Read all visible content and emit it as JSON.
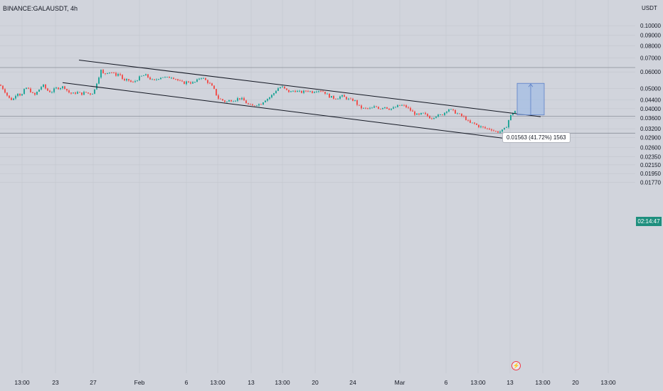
{
  "header": {
    "symbol": "BINANCE:GALAUSDT, 4h",
    "unit": "USDT"
  },
  "colors": {
    "background": "#d1d4dc",
    "up": "#26a69a",
    "down": "#ef5350",
    "line": "#131722",
    "measure_fill": "#a3bde4",
    "measure_border": "#5b7fc7",
    "price_tag": "#1e8f7e"
  },
  "measure": {
    "label": "0.01563 (41.72%) 1563"
  },
  "current_price_tag": "02:14:47",
  "icons": {
    "flash": "flash-icon"
  },
  "chart_data": {
    "type": "candlestick",
    "title": "BINANCE:GALAUSDT, 4h",
    "ylabel": "USDT",
    "ylim": [
      0.0165,
      0.115
    ],
    "y_scale": "log",
    "y_ticks": [
      "0.10000",
      "0.09000",
      "0.08000",
      "0.07000",
      "0.06000",
      "0.05000",
      "0.04400",
      "0.04000",
      "0.03600",
      "0.03200",
      "0.02900",
      "0.02600",
      "0.02350",
      "0.02150",
      "0.01950",
      "0.01770"
    ],
    "x_ticks": [
      "13:00",
      "23",
      "27",
      "Feb",
      "6",
      "13:00",
      "13",
      "13:00",
      "20",
      "24",
      "Mar",
      "6",
      "13:00",
      "13",
      "13:00",
      "20",
      "13:00"
    ],
    "horizontal_levels": [
      0.063,
      0.0368,
      0.0305
    ],
    "annotations": [
      "0.01563 (41.72%) 1563"
    ],
    "grid": true,
    "anchors": [
      [
        0,
        0.052
      ],
      [
        6,
        0.049
      ],
      [
        12,
        0.045
      ],
      [
        18,
        0.044
      ],
      [
        24,
        0.048
      ],
      [
        30,
        0.046
      ],
      [
        36,
        0.0505
      ],
      [
        42,
        0.049
      ],
      [
        48,
        0.046
      ],
      [
        54,
        0.049
      ],
      [
        60,
        0.052
      ],
      [
        66,
        0.049
      ],
      [
        72,
        0.048
      ],
      [
        78,
        0.05
      ],
      [
        84,
        0.0505
      ],
      [
        90,
        0.051
      ],
      [
        96,
        0.048
      ],
      [
        102,
        0.047
      ],
      [
        108,
        0.048
      ],
      [
        114,
        0.047
      ],
      [
        120,
        0.048
      ],
      [
        126,
        0.047
      ],
      [
        132,
        0.048
      ],
      [
        138,
        0.056
      ],
      [
        142,
        0.061
      ],
      [
        146,
        0.058
      ],
      [
        150,
        0.06
      ],
      [
        156,
        0.06
      ],
      [
        162,
        0.058
      ],
      [
        168,
        0.059
      ],
      [
        174,
        0.054
      ],
      [
        180,
        0.055
      ],
      [
        186,
        0.053
      ],
      [
        192,
        0.055
      ],
      [
        198,
        0.057
      ],
      [
        204,
        0.058
      ],
      [
        210,
        0.056
      ],
      [
        216,
        0.054
      ],
      [
        222,
        0.056
      ],
      [
        228,
        0.057
      ],
      [
        234,
        0.056
      ],
      [
        240,
        0.057
      ],
      [
        246,
        0.056
      ],
      [
        252,
        0.054
      ],
      [
        258,
        0.053
      ],
      [
        264,
        0.054
      ],
      [
        270,
        0.053
      ],
      [
        276,
        0.054
      ],
      [
        282,
        0.057
      ],
      [
        288,
        0.055
      ],
      [
        294,
        0.053
      ],
      [
        300,
        0.05
      ],
      [
        306,
        0.045
      ],
      [
        312,
        0.044
      ],
      [
        318,
        0.043
      ],
      [
        324,
        0.044
      ],
      [
        330,
        0.044
      ],
      [
        336,
        0.045
      ],
      [
        342,
        0.044
      ],
      [
        348,
        0.042
      ],
      [
        354,
        0.041
      ],
      [
        360,
        0.042
      ],
      [
        366,
        0.042
      ],
      [
        372,
        0.044
      ],
      [
        378,
        0.045
      ],
      [
        384,
        0.047
      ],
      [
        390,
        0.05
      ],
      [
        396,
        0.051
      ],
      [
        402,
        0.049
      ],
      [
        408,
        0.048
      ],
      [
        414,
        0.049
      ],
      [
        420,
        0.048
      ],
      [
        426,
        0.048
      ],
      [
        432,
        0.049
      ],
      [
        438,
        0.048
      ],
      [
        444,
        0.049
      ],
      [
        450,
        0.049
      ],
      [
        456,
        0.048
      ],
      [
        462,
        0.046
      ],
      [
        468,
        0.045
      ],
      [
        474,
        0.045
      ],
      [
        480,
        0.046
      ],
      [
        486,
        0.045
      ],
      [
        492,
        0.044
      ],
      [
        498,
        0.044
      ],
      [
        504,
        0.041
      ],
      [
        510,
        0.04
      ],
      [
        516,
        0.04
      ],
      [
        522,
        0.04
      ],
      [
        528,
        0.041
      ],
      [
        534,
        0.04
      ],
      [
        540,
        0.041
      ],
      [
        546,
        0.04
      ],
      [
        552,
        0.04
      ],
      [
        558,
        0.041
      ],
      [
        564,
        0.0415
      ],
      [
        570,
        0.041
      ],
      [
        576,
        0.0395
      ],
      [
        582,
        0.038
      ],
      [
        588,
        0.037
      ],
      [
        594,
        0.038
      ],
      [
        600,
        0.037
      ],
      [
        606,
        0.036
      ],
      [
        612,
        0.037
      ],
      [
        618,
        0.037
      ],
      [
        624,
        0.038
      ],
      [
        630,
        0.04
      ],
      [
        636,
        0.039
      ],
      [
        642,
        0.038
      ],
      [
        648,
        0.037
      ],
      [
        654,
        0.036
      ],
      [
        660,
        0.034
      ],
      [
        666,
        0.034
      ],
      [
        672,
        0.033
      ],
      [
        678,
        0.0325
      ],
      [
        684,
        0.032
      ],
      [
        690,
        0.032
      ],
      [
        696,
        0.031
      ],
      [
        702,
        0.031
      ],
      [
        708,
        0.0315
      ],
      [
        712,
        0.033
      ],
      [
        716,
        0.036
      ],
      [
        720,
        0.038
      ],
      [
        724,
        0.039
      ]
    ],
    "trendlines": [
      {
        "x1": 111,
        "p1": 0.0684,
        "x2": 760,
        "p2": 0.0366
      },
      {
        "x1": 88,
        "p1": 0.0533,
        "x2": 748,
        "p2": 0.0277
      }
    ],
    "measure_range": {
      "from": 0.0373,
      "to": 0.0529
    }
  }
}
